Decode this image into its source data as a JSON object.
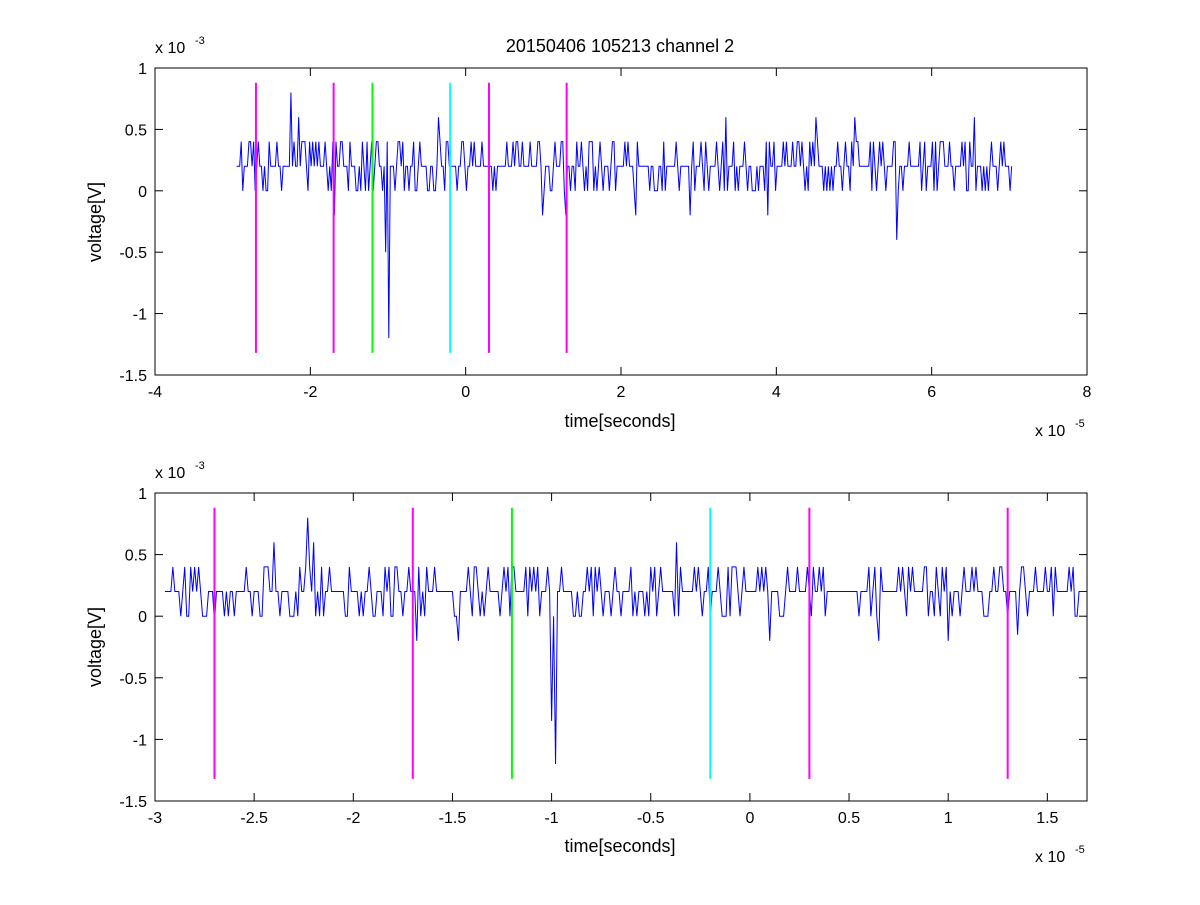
{
  "figure": {
    "background": "#ffffff"
  },
  "chart_data": [
    {
      "type": "line",
      "title": "20150406 105213 channel 2",
      "xlabel": "time[seconds]",
      "ylabel": "voltage[V]",
      "x_exponent": {
        "base": "x 10",
        "power": "-5"
      },
      "y_exponent": {
        "base": "x 10",
        "power": "-3"
      },
      "xlim": [
        -4,
        8
      ],
      "ylim": [
        -1.5,
        1
      ],
      "x_ticks": [
        -4,
        -2,
        0,
        2,
        4,
        6,
        8
      ],
      "x_tick_labels": [
        "-4",
        "-2",
        "0",
        "2",
        "4",
        "6",
        "8"
      ],
      "y_ticks": [
        -1.5,
        -1,
        -0.5,
        0,
        0.5,
        1
      ],
      "y_tick_labels": [
        "-1.5",
        "-1",
        "-0.5",
        "0",
        "0.5",
        "1"
      ],
      "grid": false,
      "signal": {
        "color": "#0000ff",
        "x_start": -2.95,
        "x_end": 7.03,
        "step": 0.02,
        "baseline": 0.2,
        "levels": [
          0,
          0.2,
          0.4
        ],
        "spikes": [
          {
            "x": -2.25,
            "y": 0.8
          },
          {
            "x": -2.15,
            "y": 0.6
          },
          {
            "x": -1.68,
            "y": -0.2
          },
          {
            "x": -1.02,
            "y": -0.5
          },
          {
            "x": -0.98,
            "y": -1.2
          },
          {
            "x": -0.35,
            "y": 0.6
          },
          {
            "x": 1.0,
            "y": -0.2
          },
          {
            "x": 1.3,
            "y": -0.2
          },
          {
            "x": 2.2,
            "y": -0.2
          },
          {
            "x": 2.9,
            "y": -0.2
          },
          {
            "x": 3.35,
            "y": 0.6
          },
          {
            "x": 3.9,
            "y": -0.2
          },
          {
            "x": 4.5,
            "y": 0.6
          },
          {
            "x": 5.0,
            "y": 0.6
          },
          {
            "x": 5.55,
            "y": -0.4
          },
          {
            "x": 6.55,
            "y": 0.6
          }
        ]
      },
      "markers": [
        {
          "x": -2.7,
          "color": "#ff00ff"
        },
        {
          "x": -1.7,
          "color": "#ff00ff"
        },
        {
          "x": -1.2,
          "color": "#00ff00"
        },
        {
          "x": -0.2,
          "color": "#00ffff"
        },
        {
          "x": 0.3,
          "color": "#ff00ff"
        },
        {
          "x": 1.3,
          "color": "#ff00ff"
        }
      ],
      "marker_range": [
        -1.32,
        0.88
      ]
    },
    {
      "type": "line",
      "title": "",
      "xlabel": "time[seconds]",
      "ylabel": "voltage[V]",
      "x_exponent": {
        "base": "x 10",
        "power": "-5"
      },
      "y_exponent": {
        "base": "x 10",
        "power": "-3"
      },
      "xlim": [
        -3,
        1.7
      ],
      "ylim": [
        -1.5,
        1
      ],
      "x_ticks": [
        -3,
        -2.5,
        -2,
        -1.5,
        -1,
        -0.5,
        0,
        0.5,
        1,
        1.5
      ],
      "x_tick_labels": [
        "-3",
        "-2.5",
        "-2",
        "-1.5",
        "-1",
        "-0.5",
        "0",
        "0.5",
        "1",
        "1.5"
      ],
      "y_ticks": [
        -1.5,
        -1,
        -0.5,
        0,
        0.5,
        1
      ],
      "y_tick_labels": [
        "-1.5",
        "-1",
        "-0.5",
        "0",
        "0.5",
        "1"
      ],
      "grid": false,
      "signal": {
        "color": "#0000ff",
        "x_start": -2.95,
        "x_end": 1.7,
        "step": 0.01,
        "baseline": 0.2,
        "levels": [
          0,
          0.2,
          0.4
        ],
        "spikes": [
          {
            "x": -2.7,
            "y": -0.05
          },
          {
            "x": -2.4,
            "y": 0.6
          },
          {
            "x": -2.23,
            "y": 0.8
          },
          {
            "x": -2.2,
            "y": 0.6
          },
          {
            "x": -1.68,
            "y": -0.2
          },
          {
            "x": -1.47,
            "y": -0.2
          },
          {
            "x": -1.0,
            "y": -0.85
          },
          {
            "x": -0.98,
            "y": -1.2
          },
          {
            "x": -0.37,
            "y": 0.6
          },
          {
            "x": 0.1,
            "y": -0.2
          },
          {
            "x": 0.65,
            "y": -0.2
          },
          {
            "x": 1.0,
            "y": -0.2
          },
          {
            "x": 1.35,
            "y": -0.15
          }
        ]
      },
      "markers": [
        {
          "x": -2.7,
          "color": "#ff00ff"
        },
        {
          "x": -1.7,
          "color": "#ff00ff"
        },
        {
          "x": -1.2,
          "color": "#00ff00"
        },
        {
          "x": -0.2,
          "color": "#00ffff"
        },
        {
          "x": 0.3,
          "color": "#ff00ff"
        },
        {
          "x": 1.3,
          "color": "#ff00ff"
        }
      ],
      "marker_range": [
        -1.32,
        0.88
      ]
    }
  ]
}
